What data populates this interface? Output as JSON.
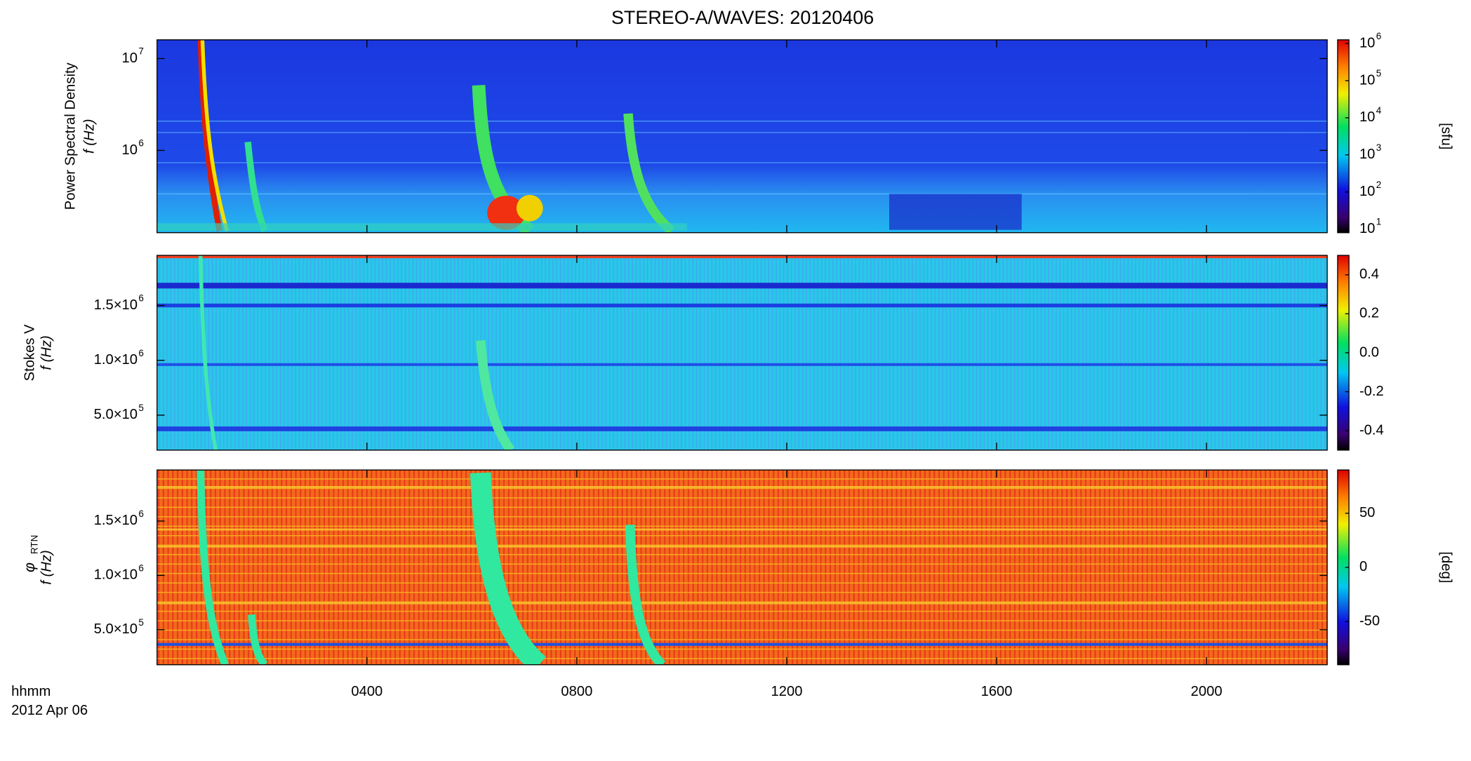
{
  "title": "STEREO-A/WAVES: 20120406",
  "x_label": "hhmm",
  "date_label": "2012 Apr 06",
  "xlim": [
    0,
    22.3
  ],
  "xticks": [
    {
      "value": 4,
      "label": "0400"
    },
    {
      "value": 8,
      "label": "0800"
    },
    {
      "value": 12,
      "label": "1200"
    },
    {
      "value": 16,
      "label": "1600"
    },
    {
      "value": 20,
      "label": "2000"
    }
  ],
  "chart_data": [
    {
      "type": "heatmap",
      "ylabel": "Power Spectral Density",
      "ylabel2": "f (Hz)",
      "yscale": "log",
      "ylim": [
        127000,
        16000000
      ],
      "yticks": [
        {
          "value": 1000000,
          "label": "10",
          "exponent": "6"
        },
        {
          "value": 10000000,
          "label": "10",
          "exponent": "7"
        }
      ],
      "cscale": "log",
      "clim": [
        8,
        1260000
      ],
      "clabel": "[sfu]",
      "cticks": [
        {
          "value": 10,
          "label": "10",
          "exponent": "1"
        },
        {
          "value": 100,
          "label": "10",
          "exponent": "2"
        },
        {
          "value": 1000,
          "label": "10",
          "exponent": "3"
        },
        {
          "value": 10000,
          "label": "10",
          "exponent": "4"
        },
        {
          "value": 100000,
          "label": "10",
          "exponent": "5"
        },
        {
          "value": 1000000,
          "label": "10",
          "exponent": "6"
        }
      ]
    },
    {
      "type": "heatmap",
      "ylabel": "Stokes V",
      "ylabel2": "f (Hz)",
      "yscale": "linear",
      "ylim": [
        181000,
        1957000
      ],
      "yticks": [
        {
          "value": 500000,
          "label": "5.0×10",
          "exponent": "5"
        },
        {
          "value": 1000000,
          "label": "1.0×10",
          "exponent": "6"
        },
        {
          "value": 1500000,
          "label": "1.5×10",
          "exponent": "6"
        }
      ],
      "cscale": "linear",
      "clim": [
        -0.5,
        0.5
      ],
      "cticks": [
        {
          "value": -0.4,
          "label": "-0.4"
        },
        {
          "value": -0.2,
          "label": "-0.2"
        },
        {
          "value": 0,
          "label": "0.0"
        },
        {
          "value": 0.2,
          "label": "0.2"
        },
        {
          "value": 0.4,
          "label": "0.4"
        }
      ]
    },
    {
      "type": "heatmap",
      "ylabel": "φ",
      "ylabel_sub": "RTN",
      "ylabel2": "f (Hz)",
      "yscale": "linear",
      "ylim": [
        178000,
        1970000
      ],
      "yticks": [
        {
          "value": 500000,
          "label": "5.0×10",
          "exponent": "5"
        },
        {
          "value": 1000000,
          "label": "1.0×10",
          "exponent": "6"
        },
        {
          "value": 1500000,
          "label": "1.5×10",
          "exponent": "6"
        }
      ],
      "cscale": "linear",
      "clim": [
        -90,
        90
      ],
      "clabel": "[deg]",
      "cticks": [
        -50,
        0,
        50
      ]
    }
  ]
}
